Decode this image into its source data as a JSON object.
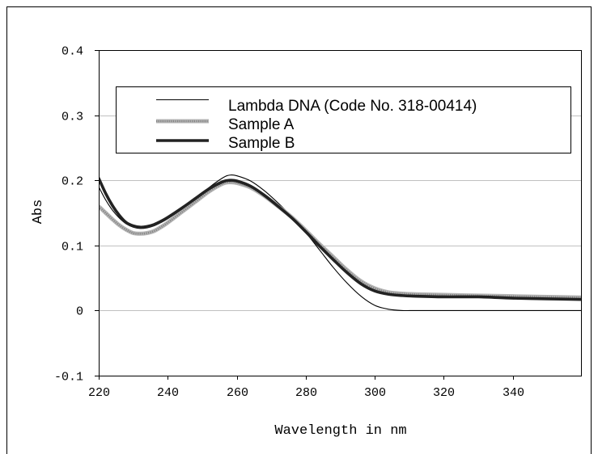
{
  "chart_data": {
    "type": "line",
    "xlabel": "Wavelength in nm",
    "ylabel": "Abs",
    "xlim": [
      220,
      360
    ],
    "ylim": [
      -0.1,
      0.4
    ],
    "xticks": [
      220,
      240,
      260,
      280,
      300,
      320,
      340
    ],
    "xtick_labels": [
      "220",
      "240",
      "260",
      "280",
      "300",
      "320",
      "340"
    ],
    "yticks": [
      0.4,
      0.3,
      0.2,
      0.1,
      0,
      -0.1
    ],
    "ytick_labels": [
      "0.4",
      "0.3",
      "0.2",
      "0.1",
      "0",
      "-0.1"
    ],
    "grid": true,
    "legend_position": "top",
    "x": [
      220,
      222,
      224,
      226,
      228,
      230,
      232,
      234,
      236,
      238,
      240,
      244,
      248,
      252,
      256,
      258,
      260,
      264,
      268,
      272,
      276,
      280,
      284,
      288,
      292,
      296,
      300,
      304,
      308,
      312,
      320,
      330,
      340,
      350,
      360
    ],
    "series": [
      {
        "name": "Lambda DNA (Code No. 318-00414)",
        "color": "#000000",
        "values": [
          0.19,
          0.17,
          0.154,
          0.142,
          0.133,
          0.128,
          0.126,
          0.127,
          0.13,
          0.135,
          0.141,
          0.155,
          0.171,
          0.189,
          0.204,
          0.208,
          0.207,
          0.199,
          0.184,
          0.165,
          0.144,
          0.12,
          0.093,
          0.066,
          0.042,
          0.022,
          0.008,
          0.002,
          0,
          0,
          0,
          0,
          0,
          0,
          0
        ]
      },
      {
        "name": "Sample A",
        "color": "#b4b4b4",
        "values": [
          0.16,
          0.15,
          0.14,
          0.131,
          0.124,
          0.119,
          0.118,
          0.119,
          0.122,
          0.128,
          0.135,
          0.151,
          0.167,
          0.183,
          0.195,
          0.197,
          0.196,
          0.189,
          0.176,
          0.16,
          0.143,
          0.123,
          0.102,
          0.082,
          0.062,
          0.045,
          0.034,
          0.028,
          0.026,
          0.025,
          0.024,
          0.023,
          0.022,
          0.021,
          0.02
        ]
      },
      {
        "name": "Sample B",
        "color": "#222222",
        "values": [
          0.203,
          0.18,
          0.161,
          0.146,
          0.135,
          0.13,
          0.128,
          0.129,
          0.132,
          0.137,
          0.143,
          0.157,
          0.172,
          0.187,
          0.198,
          0.2,
          0.199,
          0.191,
          0.177,
          0.16,
          0.142,
          0.121,
          0.099,
          0.078,
          0.058,
          0.041,
          0.03,
          0.025,
          0.023,
          0.022,
          0.021,
          0.021,
          0.019,
          0.018,
          0.017
        ]
      }
    ]
  }
}
